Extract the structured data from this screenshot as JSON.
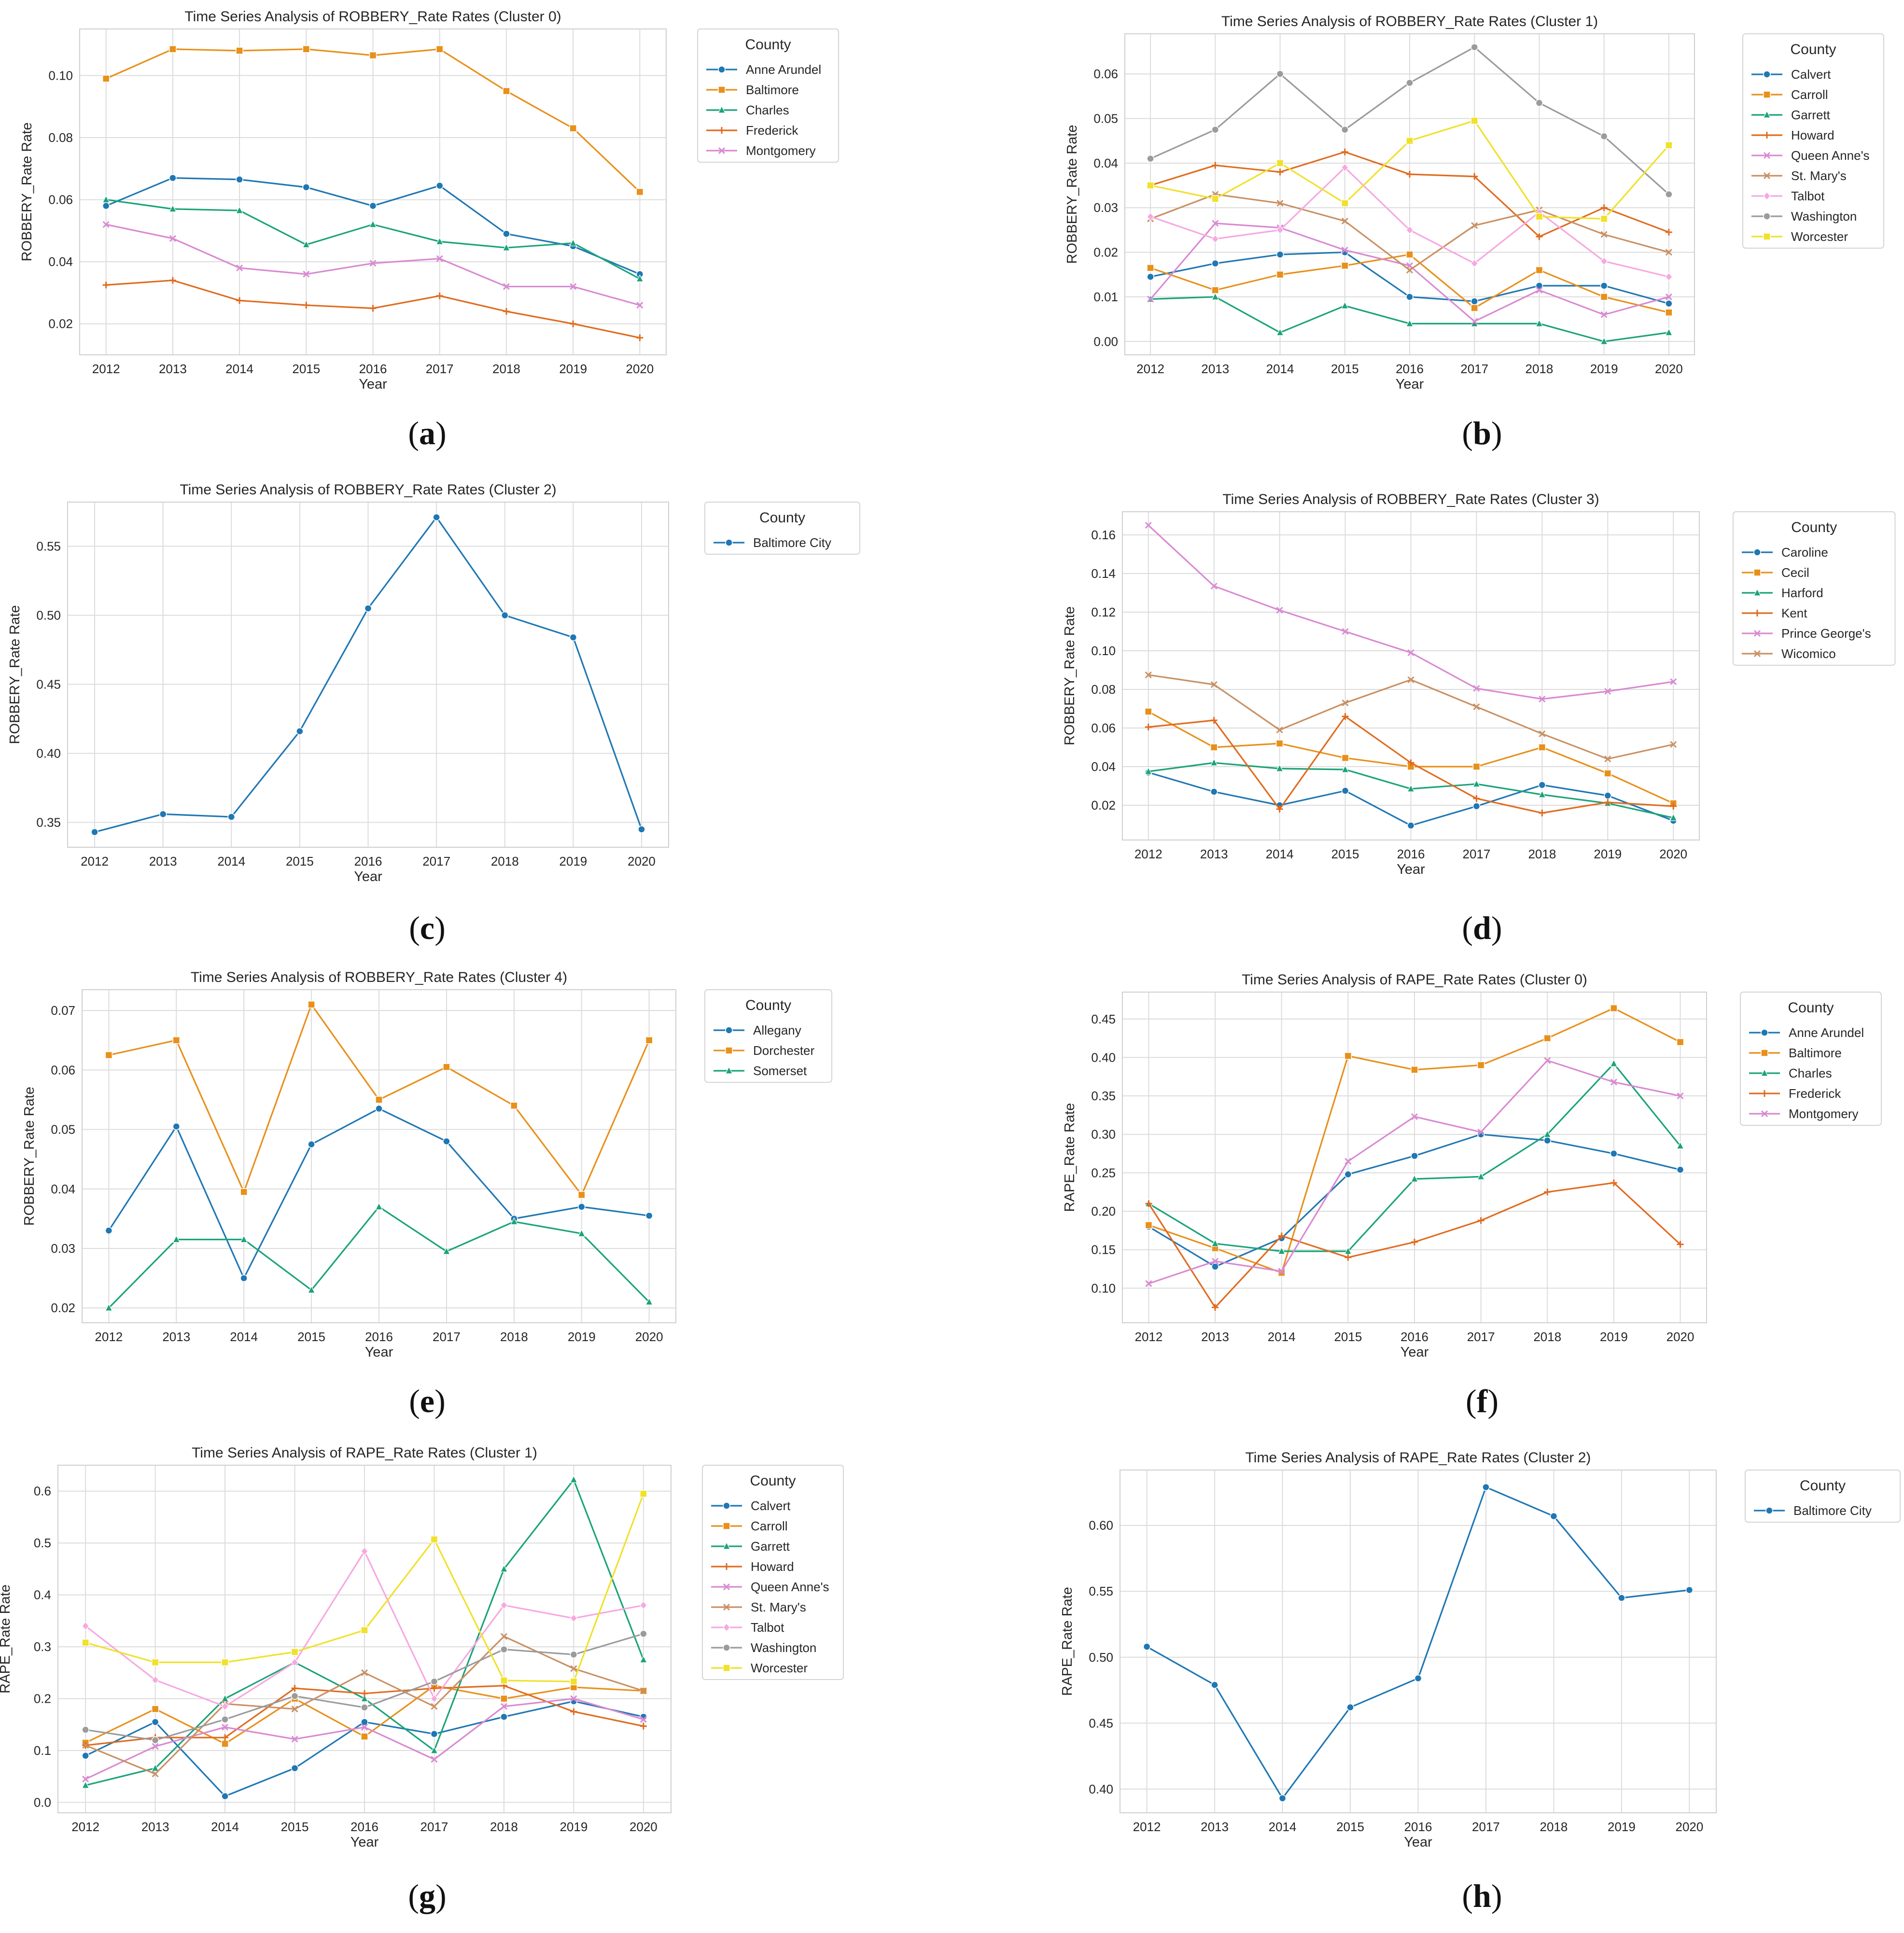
{
  "palette": {
    "Anne Arundel": "#1f77b4",
    "Baltimore": "#e8901a",
    "Charles": "#1aa37a",
    "Frederick": "#e06b1f",
    "Montgomery": "#d98ad2",
    "Calvert": "#1f77b4",
    "Carroll": "#e8901a",
    "Garrett": "#1aa37a",
    "Howard": "#e06b1f",
    "Queen Anne's": "#d98ad2",
    "St. Mary's": "#c99063",
    "Talbot": "#f7a8e0",
    "Washington": "#9b9b9b",
    "Worcester": "#f0e12a",
    "Baltimore City": "#1f77b4",
    "Caroline": "#1f77b4",
    "Cecil": "#e8901a",
    "Harford": "#1aa37a",
    "Kent": "#e06b1f",
    "Prince George's": "#d98ad2",
    "Wicomico": "#c99063",
    "Allegany": "#1f77b4",
    "Dorchester": "#e8901a",
    "Somerset": "#1aa37a"
  },
  "legend_title": "County",
  "chart_data": [
    {
      "id": "a",
      "caption_letter": "a",
      "type": "line",
      "title": "Time Series Analysis of ROBBERY_Rate Rates (Cluster 0)",
      "xlabel": "Year",
      "ylabel": "ROBBERY_Rate Rate",
      "x": [
        2012,
        2013,
        2014,
        2015,
        2016,
        2017,
        2018,
        2019,
        2020
      ],
      "ylim": [
        0.01,
        0.115
      ],
      "yticks": [
        0.02,
        0.04,
        0.06,
        0.08,
        0.1
      ],
      "ytick_labels": [
        "0.02",
        "0.04",
        "0.06",
        "0.08",
        "0.10"
      ],
      "series": [
        {
          "name": "Anne Arundel",
          "marker": "circle",
          "values": [
            0.058,
            0.067,
            0.0665,
            0.064,
            0.058,
            0.0645,
            0.049,
            0.045,
            0.036
          ]
        },
        {
          "name": "Baltimore",
          "marker": "square",
          "values": [
            0.099,
            0.1085,
            0.108,
            0.1085,
            0.1065,
            0.1085,
            0.095,
            0.083,
            0.0625
          ]
        },
        {
          "name": "Charles",
          "marker": "triangle",
          "values": [
            0.06,
            0.057,
            0.0565,
            0.0455,
            0.052,
            0.0465,
            0.0445,
            0.046,
            0.0345
          ]
        },
        {
          "name": "Frederick",
          "marker": "plus",
          "values": [
            0.0325,
            0.034,
            0.0275,
            0.026,
            0.025,
            0.029,
            0.024,
            0.02,
            0.0155
          ]
        },
        {
          "name": "Montgomery",
          "marker": "x",
          "values": [
            0.052,
            0.0475,
            0.038,
            0.036,
            0.0395,
            0.041,
            0.032,
            0.032,
            0.026
          ]
        }
      ]
    },
    {
      "id": "b",
      "caption_letter": "b",
      "type": "line",
      "title": "Time Series Analysis of ROBBERY_Rate Rates (Cluster 1)",
      "xlabel": "Year",
      "ylabel": "ROBBERY_Rate Rate",
      "x": [
        2012,
        2013,
        2014,
        2015,
        2016,
        2017,
        2018,
        2019,
        2020
      ],
      "ylim": [
        -0.003,
        0.069
      ],
      "yticks": [
        0.0,
        0.01,
        0.02,
        0.03,
        0.04,
        0.05,
        0.06
      ],
      "ytick_labels": [
        "0.00",
        "0.01",
        "0.02",
        "0.03",
        "0.04",
        "0.05",
        "0.06"
      ],
      "series": [
        {
          "name": "Calvert",
          "marker": "circle",
          "values": [
            0.0145,
            0.0175,
            0.0195,
            0.02,
            0.01,
            0.009,
            0.0125,
            0.0125,
            0.0085
          ]
        },
        {
          "name": "Carroll",
          "marker": "square",
          "values": [
            0.0165,
            0.0115,
            0.015,
            0.017,
            0.0195,
            0.0075,
            0.016,
            0.01,
            0.0065
          ]
        },
        {
          "name": "Garrett",
          "marker": "triangle",
          "values": [
            0.0095,
            0.01,
            0.002,
            0.008,
            0.004,
            0.004,
            0.004,
            0.0,
            0.002
          ]
        },
        {
          "name": "Howard",
          "marker": "plus",
          "values": [
            0.035,
            0.0395,
            0.038,
            0.0425,
            0.0375,
            0.037,
            0.0235,
            0.03,
            0.0245
          ]
        },
        {
          "name": "Queen Anne's",
          "marker": "x",
          "values": [
            0.0095,
            0.0265,
            0.0255,
            0.0205,
            0.017,
            0.0045,
            0.0115,
            0.006,
            0.01
          ]
        },
        {
          "name": "St. Mary's",
          "marker": "x",
          "values": [
            0.0275,
            0.033,
            0.031,
            0.027,
            0.016,
            0.026,
            0.0295,
            0.024,
            0.02
          ]
        },
        {
          "name": "Talbot",
          "marker": "diamond",
          "values": [
            0.028,
            0.023,
            0.025,
            0.039,
            0.025,
            0.0175,
            0.029,
            0.018,
            0.0145
          ]
        },
        {
          "name": "Washington",
          "marker": "circle",
          "values": [
            0.041,
            0.0475,
            0.06,
            0.0475,
            0.058,
            0.066,
            0.0535,
            0.046,
            0.033
          ]
        },
        {
          "name": "Worcester",
          "marker": "square",
          "values": [
            0.035,
            0.032,
            0.04,
            0.031,
            0.045,
            0.0495,
            0.028,
            0.0275,
            0.044
          ]
        }
      ]
    },
    {
      "id": "c",
      "caption_letter": "c",
      "type": "line",
      "title": "Time Series Analysis of ROBBERY_Rate Rates (Cluster 2)",
      "xlabel": "Year",
      "ylabel": "ROBBERY_Rate Rate",
      "x": [
        2012,
        2013,
        2014,
        2015,
        2016,
        2017,
        2018,
        2019,
        2020
      ],
      "ylim": [
        0.332,
        0.582
      ],
      "yticks": [
        0.35,
        0.4,
        0.45,
        0.5,
        0.55
      ],
      "ytick_labels": [
        "0.35",
        "0.40",
        "0.45",
        "0.50",
        "0.55"
      ],
      "series": [
        {
          "name": "Baltimore City",
          "marker": "circle",
          "values": [
            0.343,
            0.356,
            0.354,
            0.416,
            0.505,
            0.571,
            0.5,
            0.484,
            0.345
          ]
        }
      ]
    },
    {
      "id": "d",
      "caption_letter": "d",
      "type": "line",
      "title": "Time Series Analysis of ROBBERY_Rate Rates (Cluster 3)",
      "xlabel": "Year",
      "ylabel": "ROBBERY_Rate Rate",
      "x": [
        2012,
        2013,
        2014,
        2015,
        2016,
        2017,
        2018,
        2019,
        2020
      ],
      "ylim": [
        0.002,
        0.172
      ],
      "yticks": [
        0.02,
        0.04,
        0.06,
        0.08,
        0.1,
        0.12,
        0.14,
        0.16
      ],
      "ytick_labels": [
        "0.02",
        "0.04",
        "0.06",
        "0.08",
        "0.10",
        "0.12",
        "0.14",
        "0.16"
      ],
      "series": [
        {
          "name": "Caroline",
          "marker": "circle",
          "values": [
            0.037,
            0.027,
            0.02,
            0.0275,
            0.0095,
            0.0195,
            0.0305,
            0.025,
            0.012
          ]
        },
        {
          "name": "Cecil",
          "marker": "square",
          "values": [
            0.0685,
            0.05,
            0.052,
            0.0445,
            0.04,
            0.04,
            0.05,
            0.0365,
            0.021
          ]
        },
        {
          "name": "Harford",
          "marker": "triangle",
          "values": [
            0.0375,
            0.042,
            0.039,
            0.0385,
            0.0285,
            0.031,
            0.0255,
            0.021,
            0.0135
          ]
        },
        {
          "name": "Kent",
          "marker": "plus",
          "values": [
            0.0605,
            0.064,
            0.018,
            0.066,
            0.042,
            0.0235,
            0.016,
            0.0215,
            0.0195
          ]
        },
        {
          "name": "Prince George's",
          "marker": "x",
          "values": [
            0.165,
            0.1335,
            0.121,
            0.11,
            0.099,
            0.0805,
            0.075,
            0.079,
            0.084
          ]
        },
        {
          "name": "Wicomico",
          "marker": "x",
          "values": [
            0.0875,
            0.0825,
            0.059,
            0.073,
            0.085,
            0.071,
            0.057,
            0.044,
            0.0515
          ]
        }
      ]
    },
    {
      "id": "e",
      "caption_letter": "e",
      "type": "line",
      "title": "Time Series Analysis of ROBBERY_Rate Rates (Cluster 4)",
      "xlabel": "Year",
      "ylabel": "ROBBERY_Rate Rate",
      "x": [
        2012,
        2013,
        2014,
        2015,
        2016,
        2017,
        2018,
        2019,
        2020
      ],
      "ylim": [
        0.0175,
        0.0735
      ],
      "yticks": [
        0.02,
        0.03,
        0.04,
        0.05,
        0.06,
        0.07
      ],
      "ytick_labels": [
        "0.02",
        "0.03",
        "0.04",
        "0.05",
        "0.06",
        "0.07"
      ],
      "series": [
        {
          "name": "Allegany",
          "marker": "circle",
          "values": [
            0.033,
            0.0505,
            0.025,
            0.0475,
            0.0535,
            0.048,
            0.035,
            0.037,
            0.0355
          ]
        },
        {
          "name": "Dorchester",
          "marker": "square",
          "values": [
            0.0625,
            0.065,
            0.0395,
            0.071,
            0.055,
            0.0605,
            0.054,
            0.039,
            0.065
          ]
        },
        {
          "name": "Somerset",
          "marker": "triangle",
          "values": [
            0.02,
            0.0315,
            0.0315,
            0.023,
            0.037,
            0.0295,
            0.0345,
            0.0325,
            0.021
          ]
        }
      ]
    },
    {
      "id": "f",
      "caption_letter": "f",
      "type": "line",
      "title": "Time Series Analysis of RAPE_Rate Rates (Cluster 0)",
      "xlabel": "Year",
      "ylabel": "RAPE_Rate Rate",
      "x": [
        2012,
        2013,
        2014,
        2015,
        2016,
        2017,
        2018,
        2019,
        2020
      ],
      "ylim": [
        0.055,
        0.485
      ],
      "yticks": [
        0.1,
        0.15,
        0.2,
        0.25,
        0.3,
        0.35,
        0.4,
        0.45
      ],
      "ytick_labels": [
        "0.10",
        "0.15",
        "0.20",
        "0.25",
        "0.30",
        "0.35",
        "0.40",
        "0.45"
      ],
      "series": [
        {
          "name": "Anne Arundel",
          "marker": "circle",
          "values": [
            0.18,
            0.128,
            0.165,
            0.248,
            0.272,
            0.3,
            0.292,
            0.275,
            0.254
          ]
        },
        {
          "name": "Baltimore",
          "marker": "square",
          "values": [
            0.182,
            0.152,
            0.12,
            0.402,
            0.384,
            0.39,
            0.425,
            0.464,
            0.42
          ]
        },
        {
          "name": "Charles",
          "marker": "triangle",
          "values": [
            0.21,
            0.158,
            0.148,
            0.148,
            0.242,
            0.245,
            0.3,
            0.392,
            0.285
          ]
        },
        {
          "name": "Frederick",
          "marker": "plus",
          "values": [
            0.21,
            0.075,
            0.168,
            0.14,
            0.16,
            0.188,
            0.225,
            0.237,
            0.157
          ]
        },
        {
          "name": "Montgomery",
          "marker": "x",
          "values": [
            0.106,
            0.135,
            0.122,
            0.265,
            0.323,
            0.303,
            0.396,
            0.368,
            0.35
          ]
        }
      ]
    },
    {
      "id": "g",
      "caption_letter": "g",
      "type": "line",
      "title": "Time Series Analysis of RAPE_Rate Rates (Cluster 1)",
      "xlabel": "Year",
      "ylabel": "RAPE_Rate Rate",
      "x": [
        2012,
        2013,
        2014,
        2015,
        2016,
        2017,
        2018,
        2019,
        2020
      ],
      "ylim": [
        -0.02,
        0.65
      ],
      "yticks": [
        0.0,
        0.1,
        0.2,
        0.3,
        0.4,
        0.5,
        0.6
      ],
      "ytick_labels": [
        "0.0",
        "0.1",
        "0.2",
        "0.3",
        "0.4",
        "0.5",
        "0.6"
      ],
      "series": [
        {
          "name": "Calvert",
          "marker": "circle",
          "values": [
            0.09,
            0.155,
            0.012,
            0.066,
            0.155,
            0.132,
            0.165,
            0.195,
            0.165
          ]
        },
        {
          "name": "Carroll",
          "marker": "square",
          "values": [
            0.115,
            0.18,
            0.113,
            0.2,
            0.127,
            0.225,
            0.2,
            0.222,
            0.215
          ]
        },
        {
          "name": "Garrett",
          "marker": "triangle",
          "values": [
            0.033,
            0.066,
            0.2,
            0.27,
            0.2,
            0.1,
            0.45,
            0.622,
            0.275
          ]
        },
        {
          "name": "Howard",
          "marker": "plus",
          "values": [
            0.11,
            0.125,
            0.125,
            0.22,
            0.21,
            0.22,
            0.225,
            0.175,
            0.147
          ]
        },
        {
          "name": "Queen Anne's",
          "marker": "x",
          "values": [
            0.045,
            0.108,
            0.145,
            0.122,
            0.145,
            0.083,
            0.185,
            0.2,
            0.16
          ]
        },
        {
          "name": "St. Mary's",
          "marker": "x",
          "values": [
            0.11,
            0.055,
            0.19,
            0.18,
            0.25,
            0.185,
            0.32,
            0.258,
            0.215
          ]
        },
        {
          "name": "Talbot",
          "marker": "diamond",
          "values": [
            0.34,
            0.236,
            0.185,
            0.27,
            0.484,
            0.2,
            0.38,
            0.355,
            0.38
          ]
        },
        {
          "name": "Washington",
          "marker": "circle",
          "values": [
            0.14,
            0.12,
            0.16,
            0.205,
            0.183,
            0.233,
            0.295,
            0.285,
            0.325
          ]
        },
        {
          "name": "Worcester",
          "marker": "square",
          "values": [
            0.308,
            0.27,
            0.27,
            0.29,
            0.332,
            0.507,
            0.235,
            0.233,
            0.595
          ]
        }
      ]
    },
    {
      "id": "h",
      "caption_letter": "h",
      "type": "line",
      "title": "Time Series Analysis of RAPE_Rate Rates (Cluster 2)",
      "xlabel": "Year",
      "ylabel": "RAPE_Rate Rate",
      "x": [
        2012,
        2013,
        2014,
        2015,
        2016,
        2017,
        2018,
        2019,
        2020
      ],
      "ylim": [
        0.382,
        0.642
      ],
      "yticks": [
        0.4,
        0.45,
        0.5,
        0.55,
        0.6
      ],
      "ytick_labels": [
        "0.40",
        "0.45",
        "0.50",
        "0.55",
        "0.60"
      ],
      "series": [
        {
          "name": "Baltimore City",
          "marker": "circle",
          "values": [
            0.508,
            0.479,
            0.393,
            0.462,
            0.484,
            0.629,
            0.607,
            0.545,
            0.551
          ]
        }
      ]
    }
  ]
}
